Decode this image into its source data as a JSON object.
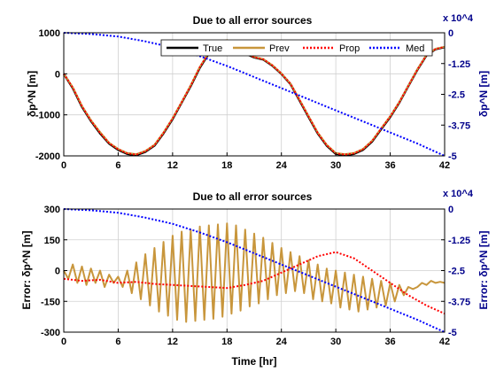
{
  "chart_data": [
    {
      "type": "line",
      "title": "Due to all error sources",
      "ylabel": "δp^N [m]",
      "ylabel_right": "δp^N [m]",
      "xlim": [
        0,
        42
      ],
      "ylim": [
        -2000,
        1000
      ],
      "yticks": [
        1000,
        0,
        -1000,
        -2000
      ],
      "yticks_labels": [
        "1000",
        "0",
        "-1000",
        "-2000"
      ],
      "ylim_right": [
        -5,
        0
      ],
      "yticks_right": [
        0,
        -1.25,
        -2.5,
        -3.75,
        -5
      ],
      "yticks_right_labels": [
        "0",
        "-1.25",
        "-2.5",
        "-3.75",
        "-5"
      ],
      "right_axis_exponent": "x 10^4",
      "xticks": [
        0,
        6,
        12,
        18,
        24,
        30,
        36,
        42
      ],
      "xticks_labels": [
        "0",
        "6",
        "12",
        "18",
        "24",
        "30",
        "36",
        "42"
      ],
      "grid": true,
      "legend_placement": "top-right",
      "series": [
        {
          "name": "True",
          "axis": "left",
          "color": "#000000",
          "x": [
            0,
            1,
            2,
            3,
            4,
            5,
            6,
            7,
            8,
            9,
            10,
            11,
            12,
            13,
            14,
            15,
            16,
            17,
            18,
            19,
            20,
            21,
            22,
            23,
            24,
            25,
            26,
            27,
            28,
            29,
            30,
            31,
            32,
            33,
            34,
            35,
            36,
            37,
            38,
            39,
            40,
            41,
            42
          ],
          "y": [
            0,
            -350,
            -800,
            -1150,
            -1450,
            -1700,
            -1850,
            -1950,
            -1980,
            -1900,
            -1750,
            -1450,
            -1100,
            -700,
            -300,
            150,
            500,
            750,
            800,
            700,
            500,
            400,
            350,
            200,
            0,
            -250,
            -650,
            -1050,
            -1450,
            -1750,
            -1950,
            -1980,
            -1950,
            -1850,
            -1650,
            -1350,
            -1050,
            -700,
            -300,
            100,
            450,
            600,
            650
          ]
        },
        {
          "name": "Prev",
          "axis": "left",
          "color": "#c8963c",
          "x": [
            0,
            1,
            2,
            3,
            4,
            5,
            6,
            7,
            8,
            9,
            10,
            11,
            12,
            13,
            14,
            15,
            16,
            17,
            18,
            19,
            20,
            21,
            22,
            23,
            24,
            25,
            26,
            27,
            28,
            29,
            30,
            31,
            32,
            33,
            34,
            35,
            36,
            37,
            38,
            39,
            40,
            41,
            42
          ],
          "y": [
            0,
            -330,
            -780,
            -1130,
            -1420,
            -1680,
            -1830,
            -1930,
            -1960,
            -1880,
            -1730,
            -1430,
            -1080,
            -690,
            -280,
            170,
            520,
            760,
            820,
            710,
            520,
            410,
            360,
            210,
            10,
            -240,
            -630,
            -1030,
            -1430,
            -1730,
            -1930,
            -1960,
            -1930,
            -1830,
            -1630,
            -1330,
            -1030,
            -690,
            -290,
            110,
            460,
            610,
            660
          ]
        },
        {
          "name": "Prop",
          "axis": "left",
          "color": "#ff0000",
          "x": [
            0,
            1,
            2,
            3,
            4,
            5,
            6,
            7,
            8,
            9,
            10,
            11,
            12,
            13,
            14,
            15,
            16,
            17,
            18,
            19,
            20,
            21,
            22,
            23,
            24,
            25,
            26,
            27,
            28,
            29,
            30,
            31,
            32,
            33,
            34,
            35,
            36,
            37,
            38,
            39,
            40,
            41,
            42
          ],
          "y": [
            0,
            -340,
            -790,
            -1140,
            -1440,
            -1690,
            -1840,
            -1940,
            -1970,
            -1890,
            -1740,
            -1440,
            -1090,
            -695,
            -290,
            160,
            510,
            755,
            810,
            705,
            510,
            405,
            355,
            205,
            5,
            -245,
            -640,
            -1040,
            -1440,
            -1740,
            -1940,
            -1970,
            -1940,
            -1840,
            -1640,
            -1340,
            -1040,
            -695,
            -295,
            105,
            455,
            605,
            655
          ]
        },
        {
          "name": "Med",
          "axis": "right",
          "color": "#0000ff",
          "x": [
            0,
            3,
            6,
            9,
            12,
            15,
            18,
            21,
            24,
            27,
            30,
            33,
            36,
            39,
            42
          ],
          "y": [
            0,
            -0.05,
            -0.15,
            -0.35,
            -0.6,
            -0.95,
            -1.35,
            -1.8,
            -2.25,
            -2.7,
            -3.15,
            -3.6,
            -4.05,
            -4.5,
            -5.0
          ]
        }
      ]
    },
    {
      "type": "line",
      "title": "Due to all error sources",
      "xlabel": "Time [hr]",
      "ylabel": "Error: δp^N [m]",
      "ylabel_right": "Error: δp^N [m]",
      "xlim": [
        0,
        42
      ],
      "ylim": [
        -300,
        300
      ],
      "yticks": [
        300,
        150,
        0,
        -150,
        -300
      ],
      "yticks_labels": [
        "300",
        "150",
        "0",
        "-150",
        "-300"
      ],
      "ylim_right": [
        -5,
        0
      ],
      "yticks_right": [
        0,
        -1.25,
        -2.5,
        -3.75,
        -5
      ],
      "yticks_right_labels": [
        "0",
        "-1.25",
        "-2.5",
        "-3.75",
        "-5"
      ],
      "right_axis_exponent": "x 10^4",
      "xticks": [
        0,
        6,
        12,
        18,
        24,
        30,
        36,
        42
      ],
      "xticks_labels": [
        "0",
        "6",
        "12",
        "18",
        "24",
        "30",
        "36",
        "42"
      ],
      "grid": true,
      "series": [
        {
          "name": "Prev",
          "axis": "left",
          "color": "#c8963c",
          "x": [
            0,
            0.5,
            1,
            1.5,
            2,
            2.5,
            3,
            3.5,
            4,
            4.5,
            5,
            5.5,
            6,
            6.5,
            7,
            7.5,
            8,
            8.5,
            9,
            9.5,
            10,
            10.5,
            11,
            11.5,
            12,
            12.5,
            13,
            13.5,
            14,
            14.5,
            15,
            15.5,
            16,
            16.5,
            17,
            17.5,
            18,
            18.5,
            19,
            19.5,
            20,
            20.5,
            21,
            21.5,
            22,
            22.5,
            23,
            23.5,
            24,
            24.5,
            25,
            25.5,
            26,
            26.5,
            27,
            27.5,
            28,
            28.5,
            29,
            29.5,
            30,
            30.5,
            31,
            31.5,
            32,
            32.5,
            33,
            33.5,
            34,
            34.5,
            35,
            35.5,
            36,
            36.5,
            37,
            37.5,
            38,
            38.5,
            39,
            39.5,
            40,
            40.5,
            41,
            41.5,
            42
          ],
          "y": [
            0,
            -40,
            30,
            -60,
            20,
            -70,
            10,
            -60,
            0,
            -80,
            -20,
            -60,
            -30,
            -80,
            0,
            -110,
            40,
            -140,
            80,
            -170,
            110,
            -200,
            140,
            -220,
            170,
            -240,
            190,
            -250,
            200,
            -245,
            215,
            -240,
            220,
            -235,
            225,
            -225,
            230,
            -210,
            220,
            -195,
            200,
            -175,
            180,
            -160,
            160,
            -140,
            135,
            -120,
            110,
            -110,
            90,
            -100,
            70,
            -110,
            50,
            -140,
            30,
            -150,
            10,
            -160,
            0,
            -180,
            -10,
            -190,
            -20,
            -200,
            -30,
            -190,
            -40,
            -180,
            -50,
            -170,
            -60,
            -150,
            -70,
            -120,
            -80,
            -90,
            -80,
            -60,
            -70,
            -50,
            -60,
            -55,
            -60
          ]
        },
        {
          "name": "Prop",
          "axis": "left",
          "color": "#ff0000",
          "x": [
            0,
            2,
            4,
            6,
            8,
            10,
            12,
            14,
            16,
            18,
            20,
            22,
            24,
            26,
            28,
            30,
            32,
            34,
            36,
            38,
            40,
            42
          ],
          "y": [
            -40,
            -50,
            -45,
            -60,
            -55,
            -65,
            -70,
            -75,
            -80,
            -85,
            -70,
            -50,
            -10,
            30,
            70,
            90,
            60,
            0,
            -60,
            -120,
            -170,
            -210
          ]
        },
        {
          "name": "Med",
          "axis": "right",
          "color": "#0000ff",
          "x": [
            0,
            3,
            6,
            9,
            12,
            15,
            18,
            21,
            24,
            27,
            30,
            33,
            36,
            39,
            42
          ],
          "y": [
            0,
            -0.05,
            -0.15,
            -0.35,
            -0.6,
            -0.95,
            -1.35,
            -1.8,
            -2.25,
            -2.7,
            -3.15,
            -3.6,
            -4.05,
            -4.5,
            -5.0
          ]
        }
      ]
    }
  ]
}
